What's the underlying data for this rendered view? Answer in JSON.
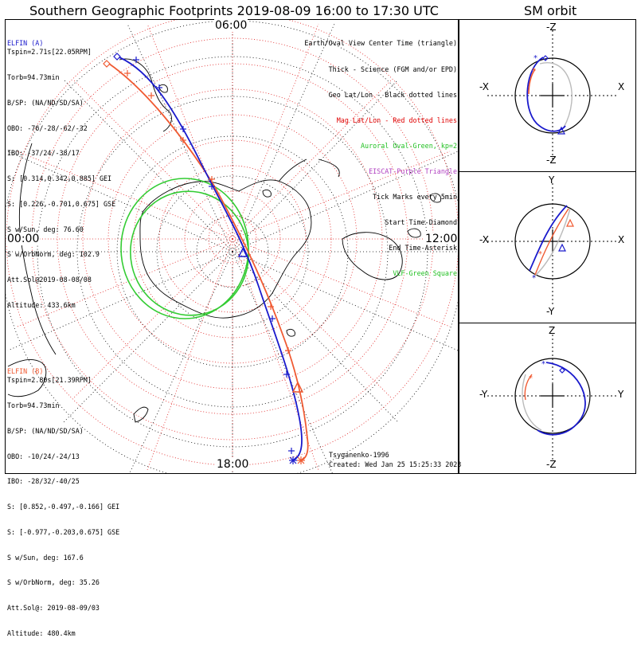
{
  "title": "Southern Geographic Footprints 2019-08-09 16:00 to 17:30 UTC",
  "sm_title": "SM orbit",
  "mlt_labels": {
    "top": "06:00",
    "left": "00:00",
    "right": "12:00",
    "bottom": "18:00"
  },
  "probe_a": {
    "name": "ELFIN (A)",
    "color": "#1a1acc",
    "lines": [
      "Tspin=2.71s[22.05RPM]",
      "Torb=94.73min",
      "B/SP: (NA/ND/SD/SA)",
      "OBO: -76/-28/-62/-32",
      "IBO: -37/24/-38/17",
      "S: [0.314,0.342,0.885] GEI",
      "S: [0.226,-0.701,0.675] GSE",
      "S w/Sun, deg: 76.60",
      "S w/OrbNorm, deg: 102.9",
      "Att.Sol@2019-08-08/08",
      "Altitude: 433.6km"
    ]
  },
  "probe_b": {
    "name": "ELFIN (B)",
    "color": "#f05a32",
    "lines": [
      "Tspin=2.80s[21.39RPM]",
      "Torb=94.73min",
      "B/SP: (NA/ND/SD/SA)",
      "OBO: -10/24/-24/13",
      "IBO: -28/32/-40/25",
      "S: [0.852,-0.497,-0.166] GEI",
      "S: [-0.977,-0.203,0.675] GSE",
      "S w/Sun, deg: 167.6",
      "S w/OrbNorm, deg: 35.26",
      "Att.Sol@: 2019-08-09/03",
      "Altitude: 480.4km"
    ]
  },
  "legend": [
    {
      "text": "Earth/Oval View Center Time (triangle)",
      "color": "#000000"
    },
    {
      "text": "Thick - Science (FGM and/or EPD)",
      "color": "#000000"
    },
    {
      "text": "Geo Lat/Lon - Black dotted lines",
      "color": "#000000"
    },
    {
      "text": "Mag Lat/Lon - Red dotted lines",
      "color": "#e00000"
    },
    {
      "text": "Auroral Oval-Green, kp=2",
      "color": "#22c022"
    },
    {
      "text": "EISCAT-Purple Triangle",
      "color": "#b040c0"
    },
    {
      "text": "Tick Marks every 5min",
      "color": "#000000"
    },
    {
      "text": "Start Time-Diamond",
      "color": "#000000"
    },
    {
      "text": "End Time-Asterisk",
      "color": "#000000"
    },
    {
      "text": "VLF-Green Square",
      "color": "#22c022"
    }
  ],
  "footer": {
    "model": "Tsyganenko-1996",
    "created": "Created: Wed Jan 25 15:25:33 2023"
  },
  "sm_panels": [
    {
      "top": "-Z",
      "bottom": "-Z",
      "left": "-X",
      "right": "X"
    },
    {
      "top": "Y",
      "bottom": "-Y",
      "left": "-X",
      "right": "X"
    },
    {
      "top": "Z",
      "bottom": "-Z",
      "left": "-Y",
      "right": "Y"
    }
  ],
  "colors": {
    "probe_a": "#1a1acc",
    "probe_b": "#f05a32",
    "auroral_oval": "#33cc33",
    "mag_grid": "#e02020",
    "geo_grid": "#000000"
  }
}
